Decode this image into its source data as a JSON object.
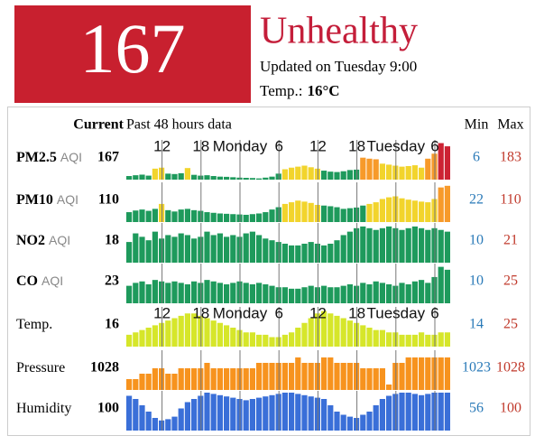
{
  "header": {
    "aqi": 167,
    "status": "Unhealthy",
    "updated": "Updated on Tuesday 9:00",
    "temp_label": "Temp.:",
    "temp_value": "16°C"
  },
  "table": {
    "current_header": "Current",
    "history_header": "Past 48 hours data",
    "min_header": "Min",
    "max_header": "Max",
    "time_ticks": [
      {
        "value": 5,
        "label": "12"
      },
      {
        "value": 11,
        "label": "18"
      },
      {
        "value": 17,
        "label": "Monday"
      },
      {
        "value": 23,
        "label": "6"
      },
      {
        "value": 29,
        "label": "12"
      },
      {
        "value": 35,
        "label": "18"
      },
      {
        "value": 41,
        "label": "Tuesday"
      },
      {
        "value": 47,
        "label": "6"
      }
    ],
    "aqi_levels": [
      {
        "max": 50,
        "color": "#1e9a5c"
      },
      {
        "max": 100,
        "color": "#f2d42c"
      },
      {
        "max": 150,
        "color": "#f79a2a"
      },
      {
        "max": 200,
        "color": "#cc2233"
      }
    ],
    "rows": [
      {
        "name": "PM2.5",
        "unit": "AQI",
        "bold": true,
        "current": 167,
        "min": 6,
        "max": 183,
        "ylim": [
          0,
          190
        ],
        "show_ticks": true,
        "use_levels": true,
        "values": [
          18,
          22,
          25,
          20,
          55,
          60,
          30,
          28,
          32,
          58,
          24,
          20,
          22,
          18,
          15,
          14,
          12,
          10,
          9,
          8,
          6,
          10,
          15,
          30,
          52,
          60,
          65,
          70,
          62,
          55,
          45,
          40,
          38,
          42,
          48,
          50,
          110,
          105,
          102,
          80,
          75,
          70,
          65,
          68,
          72,
          60,
          105,
          130,
          183,
          167
        ]
      },
      {
        "name": "PM10",
        "unit": "AQI",
        "bold": true,
        "current": 110,
        "min": 22,
        "max": 110,
        "ylim": [
          0,
          115
        ],
        "show_ticks": false,
        "use_levels": true,
        "values": [
          30,
          35,
          38,
          34,
          40,
          55,
          36,
          32,
          38,
          40,
          36,
          34,
          30,
          28,
          26,
          25,
          24,
          23,
          22,
          24,
          26,
          30,
          38,
          45,
          55,
          60,
          65,
          62,
          58,
          52,
          50,
          48,
          45,
          40,
          42,
          44,
          50,
          55,
          60,
          70,
          75,
          78,
          72,
          68,
          65,
          62,
          60,
          70,
          105,
          110
        ]
      },
      {
        "name": "NO2",
        "unit": "AQI",
        "bold": true,
        "current": 18,
        "min": 10,
        "max": 21,
        "ylim": [
          0,
          22
        ],
        "show_ticks": false,
        "use_levels": true,
        "values": [
          12,
          17,
          15,
          13,
          18,
          14,
          16,
          15,
          17,
          16,
          14,
          15,
          18,
          16,
          17,
          15,
          16,
          15,
          17,
          18,
          16,
          14,
          13,
          12,
          11,
          10,
          10,
          11,
          12,
          11,
          10,
          11,
          13,
          16,
          18,
          20,
          21,
          20,
          19,
          20,
          21,
          20,
          19,
          20,
          21,
          20,
          19,
          20,
          19,
          18
        ]
      },
      {
        "name": "CO",
        "unit": "AQI",
        "bold": true,
        "current": 23,
        "min": 10,
        "max": 25,
        "ylim": [
          0,
          26
        ],
        "show_ticks": false,
        "use_levels": true,
        "values": [
          12,
          14,
          15,
          13,
          16,
          15,
          14,
          15,
          14,
          13,
          15,
          14,
          16,
          15,
          14,
          13,
          14,
          15,
          14,
          13,
          14,
          13,
          12,
          11,
          11,
          10,
          10,
          11,
          12,
          11,
          12,
          11,
          11,
          12,
          13,
          12,
          14,
          13,
          15,
          14,
          13,
          12,
          14,
          13,
          15,
          16,
          14,
          18,
          25,
          23
        ]
      },
      {
        "name": "Temp.",
        "bold": false,
        "current": 16,
        "min": 14,
        "max": 25,
        "ylim": [
          10,
          26
        ],
        "show_ticks": true,
        "use_levels": false,
        "color": "#d6e62a",
        "values": [
          15,
          16,
          17,
          18,
          19,
          20,
          21,
          22,
          23,
          24,
          24,
          23,
          22,
          21,
          20,
          19,
          18,
          17,
          16,
          16,
          15,
          15,
          14,
          14,
          15,
          16,
          18,
          20,
          22,
          24,
          25,
          24,
          23,
          22,
          21,
          20,
          19,
          18,
          17,
          17,
          16,
          16,
          15,
          15,
          15,
          16,
          15,
          15,
          16,
          16
        ]
      },
      {
        "name": "Pressure",
        "bold": false,
        "current": 1028,
        "min": 1023,
        "max": 1028,
        "ylim": [
          1022,
          1029
        ],
        "show_ticks": false,
        "use_levels": false,
        "color": "#f7931e",
        "values": [
          1024,
          1024,
          1025,
          1025,
          1026,
          1026,
          1025,
          1025,
          1026,
          1026,
          1026,
          1026,
          1027,
          1026,
          1026,
          1026,
          1026,
          1026,
          1026,
          1026,
          1027,
          1027,
          1027,
          1027,
          1027,
          1027,
          1028,
          1027,
          1027,
          1027,
          1028,
          1028,
          1027,
          1027,
          1027,
          1027,
          1026,
          1026,
          1026,
          1026,
          1023,
          1027,
          1027,
          1028,
          1028,
          1028,
          1028,
          1028,
          1028,
          1028
        ]
      },
      {
        "name": "Humidity",
        "bold": false,
        "current": 100,
        "min": 56,
        "max": 100,
        "ylim": [
          40,
          100
        ],
        "show_ticks": false,
        "use_levels": false,
        "color": "#3a6fd8",
        "values": [
          95,
          90,
          80,
          70,
          60,
          56,
          58,
          62,
          75,
          85,
          90,
          95,
          100,
          98,
          96,
          94,
          92,
          90,
          88,
          90,
          92,
          94,
          96,
          98,
          100,
          100,
          98,
          96,
          94,
          92,
          90,
          80,
          70,
          65,
          62,
          60,
          65,
          70,
          80,
          90,
          95,
          98,
          100,
          100,
          98,
          96,
          98,
          100,
          100,
          100
        ]
      }
    ]
  }
}
